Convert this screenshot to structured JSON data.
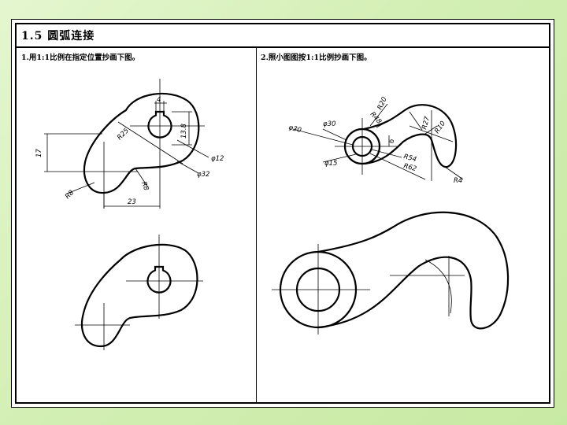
{
  "header": {
    "title": "1.5 圆弧连接"
  },
  "tasks": [
    {
      "label": "1.用1:1比例在指定位置抄画下图。"
    },
    {
      "label": "2.照小图图按1:1比例抄画下图。"
    }
  ],
  "left_dims": {
    "d4": "4",
    "d138": "13.8",
    "r25": "R25",
    "phi12": "φ12",
    "phi32": "φ32",
    "d17": "17",
    "r8a": "R8",
    "r8b": "R8",
    "d23": "23"
  },
  "right_dims": {
    "r20": "R20",
    "r48": "R48",
    "r27": "R27",
    "r10": "R10",
    "phi30a": "φ30",
    "phi30b": "φ30",
    "d6": "6",
    "r54": "R54",
    "r62": "R62",
    "phi15": "φ15",
    "r4": "R4"
  }
}
